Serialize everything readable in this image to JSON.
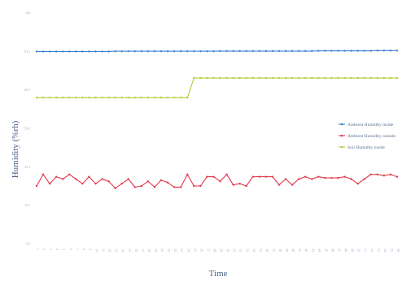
{
  "chart_data": {
    "type": "line",
    "xlabel": "Time",
    "ylabel": "Humidity (%rh)",
    "ylim": [
      0,
      100
    ],
    "yticks": [
      "0.0",
      "16.7",
      "33.3",
      "50.0",
      "66.7",
      "83.3",
      "100"
    ],
    "grid": false,
    "legend_position": "right",
    "x_count": 56,
    "series": [
      {
        "name": "Ambient Humidity inside",
        "color": "#3a7fd0",
        "values": [
          83.3,
          83.3,
          83.3,
          83.3,
          83.3,
          83.3,
          83.3,
          83.3,
          83.3,
          83.3,
          83.3,
          83.3,
          83.4,
          83.4,
          83.4,
          83.4,
          83.4,
          83.4,
          83.4,
          83.4,
          83.4,
          83.4,
          83.4,
          83.4,
          83.4,
          83.4,
          83.4,
          83.4,
          83.5,
          83.5,
          83.5,
          83.5,
          83.5,
          83.5,
          83.5,
          83.5,
          83.5,
          83.5,
          83.5,
          83.5,
          83.5,
          83.5,
          83.5,
          83.6,
          83.6,
          83.6,
          83.6,
          83.6,
          83.6,
          83.6,
          83.6,
          83.6,
          83.7,
          83.7,
          83.7,
          83.7
        ]
      },
      {
        "name": "Ambient Humidity outside",
        "color": "#e23a4a",
        "values": [
          25.0,
          30.0,
          26.0,
          29.0,
          28.0,
          30.0,
          28.0,
          26.0,
          29.0,
          26.0,
          28.0,
          27.0,
          24.0,
          26.0,
          28.0,
          24.5,
          25.0,
          27.0,
          24.5,
          27.5,
          26.5,
          24.5,
          24.5,
          30.0,
          25.0,
          25.0,
          29.0,
          29.0,
          27.0,
          30.0,
          25.5,
          26.0,
          25.0,
          29.0,
          29.0,
          29.0,
          29.0,
          25.5,
          28.0,
          25.5,
          28.0,
          29.0,
          28.0,
          29.0,
          28.5,
          28.5,
          28.5,
          29.0,
          28.0,
          26.0,
          28.0,
          30.0,
          30.0,
          29.5,
          30.0,
          29.0
        ]
      },
      {
        "name": "Soil Humidity inside",
        "color": "#b7c93c",
        "values": [
          63.3,
          63.3,
          63.3,
          63.3,
          63.3,
          63.3,
          63.3,
          63.3,
          63.3,
          63.3,
          63.3,
          63.3,
          63.3,
          63.3,
          63.3,
          63.3,
          63.3,
          63.3,
          63.3,
          63.3,
          63.3,
          63.3,
          63.3,
          63.3,
          71.8,
          71.8,
          71.8,
          71.8,
          71.8,
          71.8,
          71.8,
          71.8,
          71.8,
          71.8,
          71.8,
          71.8,
          71.8,
          71.8,
          71.8,
          71.8,
          71.8,
          71.8,
          71.8,
          71.8,
          71.8,
          71.8,
          71.8,
          71.8,
          71.8,
          71.8,
          71.8,
          71.8,
          71.8,
          71.8,
          71.8,
          71.8
        ]
      }
    ]
  }
}
